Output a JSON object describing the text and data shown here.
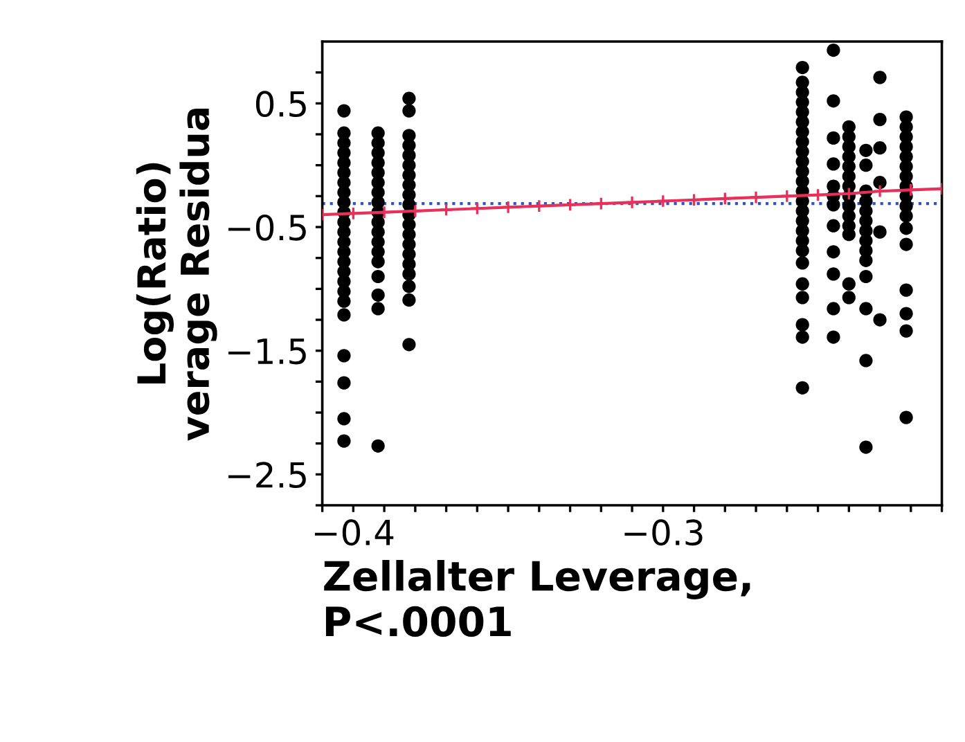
{
  "chart_data": {
    "type": "scatter",
    "xlabel": "Zellalter Leverage,\nP<.0001",
    "ylabel": "Log(Ratio)\nverage Residua",
    "xlim": [
      -0.41,
      -0.21
    ],
    "ylim": [
      -2.75,
      1.0
    ],
    "xticks": [
      {
        "value": -0.41,
        "label": null
      },
      {
        "value": -0.4,
        "label": "−0.4"
      },
      {
        "value": -0.39,
        "label": null
      },
      {
        "value": -0.38,
        "label": null
      },
      {
        "value": -0.37,
        "label": null
      },
      {
        "value": -0.36,
        "label": null
      },
      {
        "value": -0.35,
        "label": null
      },
      {
        "value": -0.34,
        "label": null
      },
      {
        "value": -0.33,
        "label": null
      },
      {
        "value": -0.32,
        "label": null
      },
      {
        "value": -0.31,
        "label": null
      },
      {
        "value": -0.3,
        "label": "−0.3"
      },
      {
        "value": -0.29,
        "label": null
      },
      {
        "value": -0.28,
        "label": null
      },
      {
        "value": -0.27,
        "label": null
      },
      {
        "value": -0.26,
        "label": null
      },
      {
        "value": -0.25,
        "label": null
      },
      {
        "value": -0.24,
        "label": null
      },
      {
        "value": -0.23,
        "label": null
      },
      {
        "value": -0.22,
        "label": null
      },
      {
        "value": -0.21,
        "label": null
      }
    ],
    "yticks": [
      {
        "value": 0.75,
        "label": null
      },
      {
        "value": 0.5,
        "label": "0.5"
      },
      {
        "value": 0.25,
        "label": null
      },
      {
        "value": 0.0,
        "label": null
      },
      {
        "value": -0.25,
        "label": null
      },
      {
        "value": -0.5,
        "label": "−0.5"
      },
      {
        "value": -0.75,
        "label": null
      },
      {
        "value": -1.0,
        "label": null
      },
      {
        "value": -1.25,
        "label": null
      },
      {
        "value": -1.5,
        "label": "−1.5"
      },
      {
        "value": -1.75,
        "label": null
      },
      {
        "value": -2.0,
        "label": null
      },
      {
        "value": -2.25,
        "label": null
      },
      {
        "value": -2.5,
        "label": "−2.5"
      },
      {
        "value": -2.75,
        "label": null
      }
    ],
    "grid": false,
    "legend": false,
    "marker": "circle",
    "ref_lines": [
      {
        "axis": "y",
        "value": -0.31,
        "color": "#3355bb",
        "line_style": "dotted"
      }
    ],
    "series": [
      {
        "color": "#000000",
        "x": [
          -0.403,
          -0.403,
          -0.403,
          -0.403,
          -0.403,
          -0.403,
          -0.403,
          -0.403,
          -0.403,
          -0.403,
          -0.403,
          -0.403,
          -0.403,
          -0.403,
          -0.403,
          -0.403,
          -0.403,
          -0.403,
          -0.403,
          -0.403,
          -0.403,
          -0.403,
          -0.403,
          -0.403
        ],
        "values": [
          0.44,
          0.26,
          0.18,
          0.1,
          0.02,
          -0.06,
          -0.14,
          -0.22,
          -0.3,
          -0.38,
          -0.46,
          -0.54,
          -0.62,
          -0.7,
          -0.78,
          -0.86,
          -0.94,
          -1.02,
          -1.1,
          -1.21,
          -1.54,
          -1.76,
          -2.05,
          -2.23
        ]
      },
      {
        "color": "#000000",
        "x": [
          -0.392,
          -0.392,
          -0.392,
          -0.392,
          -0.392,
          -0.392,
          -0.392,
          -0.392,
          -0.392,
          -0.392,
          -0.392,
          -0.392,
          -0.392,
          -0.392,
          -0.392,
          -0.392,
          -0.392,
          -0.392
        ],
        "values": [
          0.26,
          0.18,
          0.1,
          0.02,
          -0.06,
          -0.14,
          -0.22,
          -0.3,
          -0.38,
          -0.46,
          -0.54,
          -0.62,
          -0.7,
          -0.78,
          -0.9,
          -1.05,
          -1.16,
          -2.27
        ]
      },
      {
        "color": "#000000",
        "x": [
          -0.382,
          -0.382,
          -0.382,
          -0.382,
          -0.382,
          -0.382,
          -0.382,
          -0.382,
          -0.382,
          -0.382,
          -0.382,
          -0.382,
          -0.382,
          -0.382,
          -0.382,
          -0.382,
          -0.382,
          -0.382,
          -0.382,
          -0.382
        ],
        "values": [
          0.54,
          0.44,
          0.24,
          0.16,
          0.08,
          0,
          -0.08,
          -0.16,
          -0.24,
          -0.32,
          -0.4,
          -0.48,
          -0.56,
          -0.64,
          -0.72,
          -0.8,
          -0.88,
          -0.98,
          -1.09,
          -1.45
        ]
      },
      {
        "color": "#000000",
        "x": [
          -0.255,
          -0.255,
          -0.255,
          -0.255,
          -0.255,
          -0.255,
          -0.255,
          -0.255,
          -0.255,
          -0.255,
          -0.255,
          -0.255,
          -0.255,
          -0.255,
          -0.255,
          -0.255,
          -0.255,
          -0.255,
          -0.255,
          -0.255,
          -0.255,
          -0.255,
          -0.255,
          -0.255,
          -0.255
        ],
        "values": [
          0.79,
          0.67,
          0.59,
          0.51,
          0.43,
          0.35,
          0.27,
          0.19,
          0.11,
          0.03,
          -0.05,
          -0.13,
          -0.21,
          -0.29,
          -0.37,
          -0.45,
          -0.53,
          -0.61,
          -0.69,
          -0.79,
          -0.96,
          -1.07,
          -1.29,
          -1.39,
          -1.8
        ]
      },
      {
        "color": "#000000",
        "x": [
          -0.245,
          -0.245,
          -0.245,
          -0.245,
          -0.245,
          -0.245,
          -0.245,
          -0.245,
          -0.245,
          -0.245,
          -0.245,
          -0.245
        ],
        "values": [
          0.93,
          0.52,
          0.22,
          0.01,
          -0.17,
          -0.25,
          -0.32,
          -0.49,
          -0.7,
          -0.88,
          -1.16,
          -1.39
        ]
      },
      {
        "color": "#000000",
        "x": [
          -0.24,
          -0.24,
          -0.24,
          -0.24,
          -0.24,
          -0.24,
          -0.24,
          -0.24,
          -0.24,
          -0.24,
          -0.24,
          -0.24,
          -0.24,
          -0.24
        ],
        "values": [
          0.31,
          0.23,
          0.15,
          0.07,
          -0.01,
          -0.09,
          -0.17,
          -0.25,
          -0.33,
          -0.41,
          -0.49,
          -0.56,
          -0.96,
          -1.07
        ]
      },
      {
        "color": "#000000",
        "x": [
          -0.2345,
          -0.2345,
          -0.2345,
          -0.2345,
          -0.2345,
          -0.2345,
          -0.2345,
          -0.2345,
          -0.2345,
          -0.2345,
          -0.2345,
          -0.2345,
          -0.2345,
          -0.2345
        ],
        "values": [
          0.12,
          0,
          -0.21,
          -0.29,
          -0.37,
          -0.45,
          -0.53,
          -0.61,
          -0.69,
          -0.77,
          -0.9,
          -1.16,
          -1.58,
          -2.28
        ]
      },
      {
        "color": "#000000",
        "x": [
          -0.23,
          -0.23,
          -0.23,
          -0.23,
          -0.23,
          -0.23
        ],
        "values": [
          0.71,
          0.37,
          0.14,
          -0.14,
          -0.54,
          -1.25
        ]
      },
      {
        "color": "#000000",
        "x": [
          -0.2215,
          -0.2215,
          -0.2215,
          -0.2215,
          -0.2215,
          -0.2215,
          -0.2215,
          -0.2215,
          -0.2215,
          -0.2215,
          -0.2215,
          -0.2215,
          -0.2215,
          -0.2215,
          -0.2215,
          -0.2215,
          -0.2215
        ],
        "values": [
          0.39,
          0.31,
          0.23,
          0.15,
          0.07,
          -0.01,
          -0.09,
          -0.17,
          -0.25,
          -0.33,
          -0.41,
          -0.51,
          -0.64,
          -1.01,
          -1.2,
          -1.34,
          -2.04
        ]
      },
      {
        "type": "line",
        "color": "#e8305a",
        "marker": "cross",
        "x": [
          -0.41,
          -0.4,
          -0.39,
          -0.38,
          -0.37,
          -0.36,
          -0.35,
          -0.34,
          -0.33,
          -0.32,
          -0.31,
          -0.3,
          -0.29,
          -0.28,
          -0.27,
          -0.26,
          -0.25,
          -0.24,
          -0.23,
          -0.22,
          -0.21
        ],
        "values": [
          -0.4,
          -0.39,
          -0.38,
          -0.37,
          -0.36,
          -0.35,
          -0.34,
          -0.33,
          -0.32,
          -0.31,
          -0.3,
          -0.29,
          -0.28,
          -0.27,
          -0.26,
          -0.25,
          -0.24,
          -0.23,
          -0.21,
          -0.2,
          -0.19
        ]
      }
    ]
  }
}
